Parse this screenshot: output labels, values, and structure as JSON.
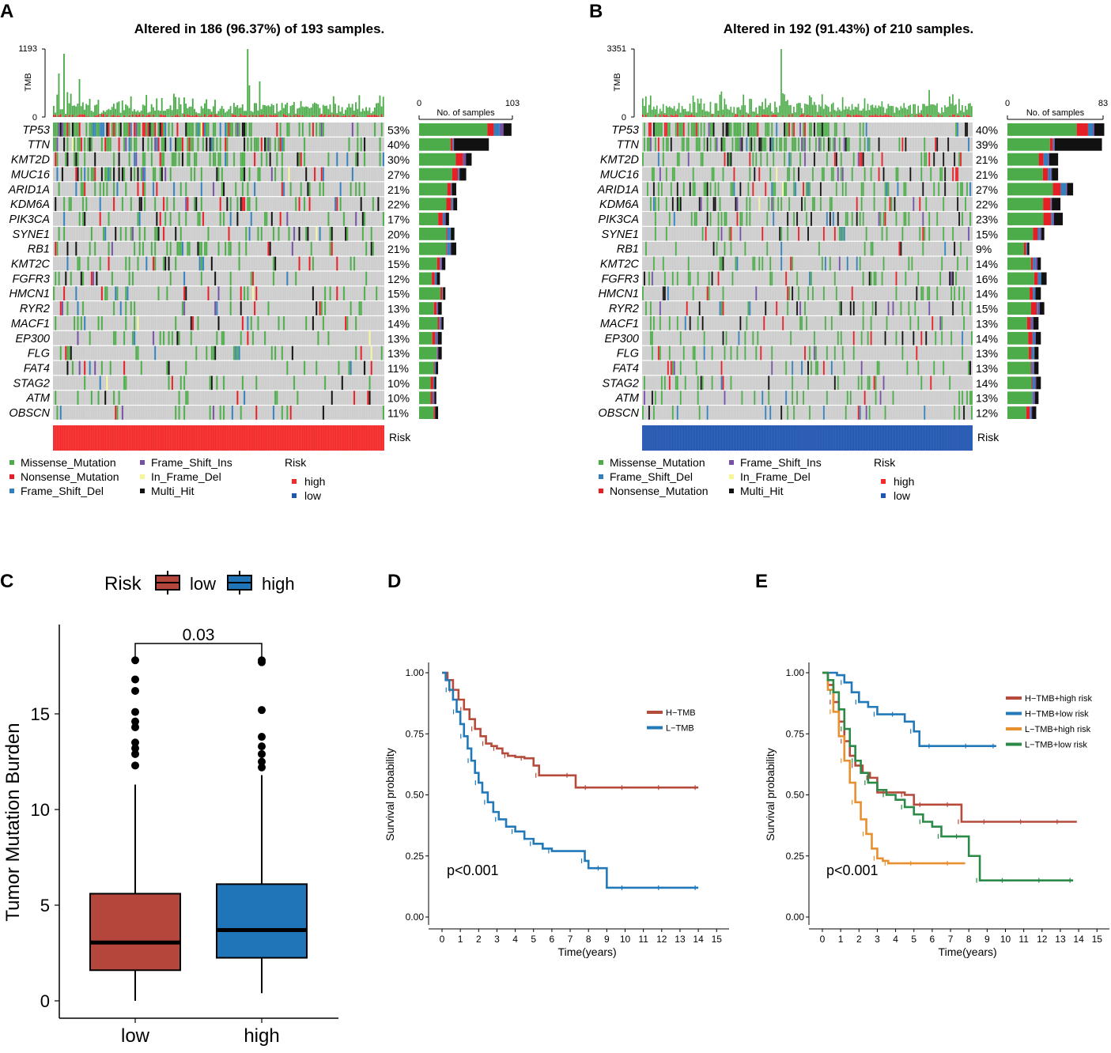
{
  "panels": {
    "A": {
      "letter": "A"
    },
    "B": {
      "letter": "B"
    },
    "C": {
      "letter": "C"
    },
    "D": {
      "letter": "D"
    },
    "E": {
      "letter": "E"
    }
  },
  "chart_data": [
    {
      "type": "heatmap",
      "id": "A",
      "title": "Altered in 186 (96.37%) of 193 samples.",
      "n_samples": 193,
      "tmb_axis": {
        "label": "TMB",
        "max": 1193,
        "min": 0,
        "max_label": "1193",
        "min_label": "0"
      },
      "bar_axis": {
        "label": "No. of samples",
        "min": 0,
        "max": 103,
        "min_label": "0",
        "max_label": "103"
      },
      "risk_label": "Risk",
      "risk_group": "high",
      "genes": [
        "TP53",
        "TTN",
        "KMT2D",
        "MUC16",
        "ARID1A",
        "KDM6A",
        "PIK3CA",
        "SYNE1",
        "RB1",
        "KMT2C",
        "FGFR3",
        "HMCN1",
        "RYR2",
        "MACF1",
        "EP300",
        "FLG",
        "FAT4",
        "STAG2",
        "ATM",
        "OBSCN"
      ],
      "percentages": [
        "53%",
        "40%",
        "30%",
        "27%",
        "21%",
        "22%",
        "17%",
        "20%",
        "21%",
        "15%",
        "12%",
        "15%",
        "13%",
        "14%",
        "13%",
        "13%",
        "11%",
        "10%",
        "10%",
        "11%"
      ],
      "gene_counts": [
        102,
        77,
        58,
        52,
        41,
        42,
        33,
        39,
        41,
        29,
        23,
        29,
        25,
        27,
        25,
        25,
        21,
        19,
        19,
        21
      ],
      "legend": {
        "variants": [
          "Missense_Mutation",
          "Nonsense_Mutation",
          "Frame_Shift_Del",
          "Frame_Shift_Ins",
          "In_Frame_Del",
          "Multi_Hit"
        ],
        "risk_title": "Risk",
        "risk_levels": [
          "high",
          "low"
        ]
      }
    },
    {
      "type": "heatmap",
      "id": "B",
      "title": "Altered in 192 (91.43%) of 210 samples.",
      "n_samples": 210,
      "tmb_axis": {
        "label": "TMB",
        "max": 3351,
        "min": 0,
        "max_label": "3351",
        "min_label": "0"
      },
      "bar_axis": {
        "label": "No. of samples",
        "min": 0,
        "max": 83,
        "min_label": "0",
        "max_label": "83"
      },
      "risk_label": "Risk",
      "risk_group": "low",
      "genes": [
        "TP53",
        "TTN",
        "KMT2D",
        "MUC16",
        "ARID1A",
        "KDM6A",
        "PIK3CA",
        "SYNE1",
        "RB1",
        "KMT2C",
        "FGFR3",
        "HMCN1",
        "RYR2",
        "MACF1",
        "EP300",
        "FLG",
        "FAT4",
        "STAG2",
        "ATM",
        "OBSCN"
      ],
      "percentages": [
        "40%",
        "39%",
        "21%",
        "21%",
        "27%",
        "22%",
        "23%",
        "15%",
        "9%",
        "14%",
        "16%",
        "14%",
        "15%",
        "13%",
        "14%",
        "13%",
        "13%",
        "14%",
        "13%",
        "12%"
      ],
      "gene_counts": [
        84,
        82,
        44,
        44,
        57,
        46,
        48,
        32,
        19,
        29,
        34,
        29,
        32,
        27,
        29,
        27,
        27,
        29,
        27,
        25
      ],
      "legend": {
        "variants": [
          "Missense_Mutation",
          "Frame_Shift_Del",
          "Nonsense_Mutation",
          "Frame_Shift_Ins",
          "In_Frame_Del",
          "Multi_Hit"
        ],
        "risk_title": "Risk",
        "risk_levels": [
          "high",
          "low"
        ]
      }
    },
    {
      "type": "box",
      "id": "C",
      "legend_title": "Risk",
      "categories": [
        "low",
        "high"
      ],
      "ylabel": "Tumor Mutation Burden",
      "ylim": [
        0,
        19
      ],
      "yticks": [
        0,
        5,
        10,
        15
      ],
      "pvalue_label": "0.03",
      "boxes": [
        {
          "name": "low",
          "q1": 1.6,
          "median": 3.05,
          "q3": 5.6,
          "whisker_low": 0.0,
          "whisker_high": 11.3,
          "outliers": [
            12.3,
            12.9,
            13.2,
            13.5,
            14.3,
            14.6,
            15.1,
            16.2,
            16.8,
            17.8
          ],
          "color": "#b4463c"
        },
        {
          "name": "high",
          "q1": 2.25,
          "median": 3.7,
          "q3": 6.1,
          "whisker_low": 0.4,
          "whisker_high": 11.8,
          "outliers": [
            12.2,
            12.5,
            12.9,
            13.3,
            13.8,
            15.2,
            17.7,
            17.8
          ],
          "color": "#1f75b8"
        }
      ]
    },
    {
      "type": "line",
      "id": "D",
      "xlabel": "Time(years)",
      "ylabel": "Survival probability",
      "xticks": [
        0,
        1,
        2,
        3,
        4,
        5,
        6,
        7,
        8,
        9,
        10,
        11,
        12,
        13,
        14,
        15
      ],
      "yticks": [
        "0.00",
        "0.25",
        "0.50",
        "0.75",
        "1.00"
      ],
      "pvalue": "p<0.001",
      "series": [
        {
          "name": "H−TMB",
          "color": "#b64a3b",
          "x": [
            0,
            0.3,
            0.6,
            0.9,
            1.2,
            1.5,
            1.8,
            2.1,
            2.4,
            2.7,
            3.0,
            3.3,
            3.6,
            4.0,
            4.5,
            5.0,
            5.3,
            6.0,
            7.0,
            7.3,
            8.0,
            9.0,
            10.0,
            11.0,
            12.0,
            13.0,
            14.0
          ],
          "y": [
            1.0,
            0.97,
            0.93,
            0.89,
            0.85,
            0.81,
            0.77,
            0.74,
            0.71,
            0.7,
            0.69,
            0.67,
            0.66,
            0.655,
            0.65,
            0.62,
            0.58,
            0.58,
            0.58,
            0.53,
            0.53,
            0.53,
            0.53,
            0.53,
            0.53,
            0.53,
            0.53
          ]
        },
        {
          "name": "L−TMB",
          "color": "#2179b9",
          "x": [
            0,
            0.2,
            0.4,
            0.6,
            0.8,
            1.0,
            1.2,
            1.4,
            1.6,
            1.8,
            2.0,
            2.2,
            2.5,
            2.8,
            3.1,
            3.5,
            4.0,
            4.5,
            5.0,
            5.5,
            6.0,
            7.0,
            7.8,
            8.0,
            8.7,
            9.0,
            10.0,
            11.0,
            12.0,
            13.0,
            14.0
          ],
          "y": [
            1.0,
            0.97,
            0.93,
            0.89,
            0.84,
            0.79,
            0.74,
            0.69,
            0.64,
            0.59,
            0.55,
            0.51,
            0.47,
            0.43,
            0.4,
            0.37,
            0.35,
            0.32,
            0.3,
            0.28,
            0.27,
            0.27,
            0.23,
            0.2,
            0.2,
            0.12,
            0.12,
            0.12,
            0.12,
            0.12,
            0.12
          ]
        }
      ]
    },
    {
      "type": "line",
      "id": "E",
      "xlabel": "Time(years)",
      "ylabel": "Survival probability",
      "xticks": [
        0,
        1,
        2,
        3,
        4,
        5,
        6,
        7,
        8,
        9,
        10,
        11,
        12,
        13,
        14,
        15
      ],
      "yticks": [
        "0.00",
        "0.25",
        "0.50",
        "0.75",
        "1.00"
      ],
      "pvalue": "p<0.001",
      "series": [
        {
          "name": "H−TMB+high risk",
          "color": "#b64a3b",
          "x": [
            0,
            0.3,
            0.6,
            0.9,
            1.2,
            1.5,
            1.8,
            2.2,
            2.6,
            3.0,
            3.5,
            4.0,
            4.5,
            5.0,
            5.5,
            6.0,
            7.0,
            7.2,
            7.6,
            8.0,
            9.0,
            10.0,
            11.0,
            12.0,
            13.0,
            13.9
          ],
          "y": [
            1.0,
            0.95,
            0.88,
            0.8,
            0.72,
            0.66,
            0.62,
            0.59,
            0.57,
            0.51,
            0.51,
            0.51,
            0.5,
            0.46,
            0.46,
            0.46,
            0.46,
            0.46,
            0.39,
            0.39,
            0.39,
            0.39,
            0.39,
            0.39,
            0.39,
            0.39
          ]
        },
        {
          "name": "H−TMB+low risk",
          "color": "#2179b9",
          "x": [
            0,
            0.8,
            1.2,
            1.6,
            2.0,
            2.5,
            3.0,
            3.5,
            4.0,
            4.5,
            5.0,
            5.3,
            6.0,
            7.0,
            8.0,
            9.0,
            9.5
          ],
          "y": [
            1.0,
            0.99,
            0.96,
            0.92,
            0.88,
            0.86,
            0.83,
            0.83,
            0.83,
            0.8,
            0.76,
            0.7,
            0.7,
            0.7,
            0.7,
            0.7,
            0.7
          ]
        },
        {
          "name": "L−TMB+high risk",
          "color": "#e8902f",
          "x": [
            0,
            0.3,
            0.6,
            0.9,
            1.2,
            1.5,
            1.8,
            2.1,
            2.4,
            2.7,
            3.0,
            3.3,
            3.6,
            4.0,
            5.0,
            6.0,
            7.0,
            7.8
          ],
          "y": [
            1.0,
            0.93,
            0.84,
            0.74,
            0.64,
            0.55,
            0.47,
            0.4,
            0.34,
            0.28,
            0.24,
            0.23,
            0.22,
            0.22,
            0.22,
            0.22,
            0.22,
            0.22
          ]
        },
        {
          "name": "L−TMB+low risk",
          "color": "#2b8a47",
          "x": [
            0,
            0.3,
            0.6,
            0.9,
            1.2,
            1.5,
            1.8,
            2.1,
            2.5,
            3.0,
            3.5,
            4.0,
            4.5,
            5.0,
            5.5,
            6.0,
            6.5,
            7.0,
            7.5,
            8.0,
            8.6,
            9.0,
            10.0,
            11.0,
            12.0,
            13.0,
            13.7
          ],
          "y": [
            1.0,
            0.97,
            0.92,
            0.85,
            0.77,
            0.7,
            0.64,
            0.59,
            0.55,
            0.52,
            0.5,
            0.48,
            0.45,
            0.42,
            0.39,
            0.37,
            0.33,
            0.33,
            0.33,
            0.25,
            0.15,
            0.15,
            0.15,
            0.15,
            0.15,
            0.15,
            0.15
          ]
        }
      ]
    }
  ],
  "colors": {
    "missense": "#4dac4a",
    "nonsense": "#e41f26",
    "frame_shift_del": "#3380bd",
    "frame_shift_ins": "#7551a5",
    "in_frame_del": "#f5f59a",
    "multi_hit": "#111111",
    "background_cell": "#cccccc",
    "risk_high": "#f42a2a",
    "risk_low": "#2156b0"
  }
}
